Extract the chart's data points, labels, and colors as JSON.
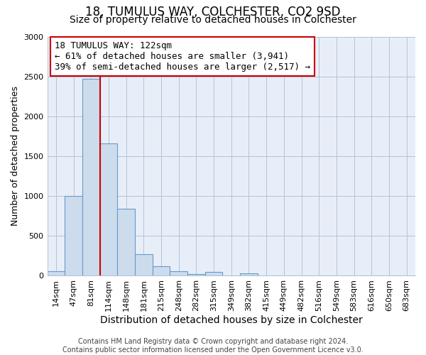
{
  "title": "18, TUMULUS WAY, COLCHESTER, CO2 9SD",
  "subtitle": "Size of property relative to detached houses in Colchester",
  "xlabel": "Distribution of detached houses by size in Colchester",
  "ylabel": "Number of detached properties",
  "bin_labels": [
    "14sqm",
    "47sqm",
    "81sqm",
    "114sqm",
    "148sqm",
    "181sqm",
    "215sqm",
    "248sqm",
    "282sqm",
    "315sqm",
    "349sqm",
    "382sqm",
    "415sqm",
    "449sqm",
    "482sqm",
    "516sqm",
    "549sqm",
    "583sqm",
    "616sqm",
    "650sqm",
    "683sqm"
  ],
  "bar_values": [
    55,
    1000,
    2470,
    1660,
    835,
    265,
    120,
    50,
    15,
    40,
    0,
    30,
    0,
    0,
    0,
    0,
    0,
    0,
    0,
    0,
    0
  ],
  "bar_color": "#ccdcec",
  "bar_edge_color": "#6699cc",
  "vline_x": 3,
  "vline_color": "#cc0000",
  "annotation_line1": "18 TUMULUS WAY: 122sqm",
  "annotation_line2": "← 61% of detached houses are smaller (3,941)",
  "annotation_line3": "39% of semi-detached houses are larger (2,517) →",
  "annotation_box_color": "#ffffff",
  "annotation_box_edge": "#cc0000",
  "plot_bg_color": "#e8eef8",
  "ylim": [
    0,
    3000
  ],
  "yticks": [
    0,
    500,
    1000,
    1500,
    2000,
    2500,
    3000
  ],
  "footer": "Contains HM Land Registry data © Crown copyright and database right 2024.\nContains public sector information licensed under the Open Government Licence v3.0.",
  "title_fontsize": 12,
  "subtitle_fontsize": 10,
  "xlabel_fontsize": 10,
  "ylabel_fontsize": 9,
  "tick_fontsize": 8,
  "annotation_fontsize": 9,
  "footer_fontsize": 7
}
